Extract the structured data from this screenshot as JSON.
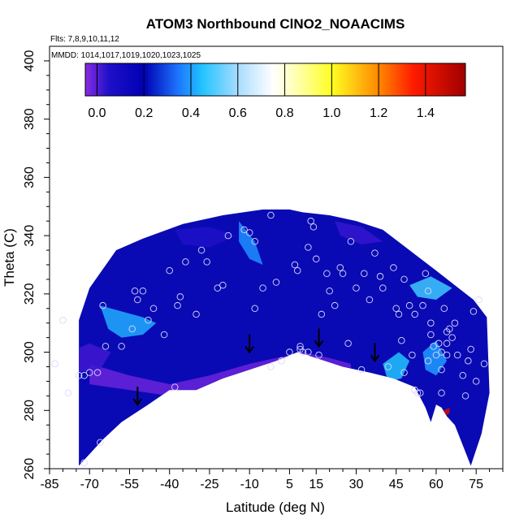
{
  "chart_data": {
    "type": "heatmap",
    "title": "ATOM3 Northbound ClNO2_NOAACIMS",
    "flights_label": "Flts: 7,8,9,10,11,12",
    "dates_label": "MMDD: 1014,1017,1019,1020,1023,1025",
    "xlabel": "Latitude (deg N)",
    "ylabel": "Theta (C)",
    "xlim": [
      -85,
      85
    ],
    "ylim": [
      260,
      405
    ],
    "x_ticks": [
      -85,
      -70,
      -55,
      -40,
      -25,
      -10,
      5,
      15,
      30,
      45,
      60,
      75
    ],
    "y_ticks": [
      260,
      280,
      300,
      320,
      340,
      360,
      380,
      400
    ],
    "colorbar": {
      "range": [
        -0.05,
        1.57
      ],
      "ticks": [
        0.0,
        0.2,
        0.4,
        0.6,
        0.8,
        1.0,
        1.2,
        1.4
      ],
      "tick_labels": [
        "0.0",
        "0.2",
        "0.4",
        "0.6",
        "0.8",
        "1.0",
        "1.2",
        "1.4"
      ],
      "stops": [
        {
          "v": -0.05,
          "c": "#8a2be2"
        },
        {
          "v": 0.05,
          "c": "#1e10c8"
        },
        {
          "v": 0.2,
          "c": "#0000b4"
        },
        {
          "v": 0.35,
          "c": "#1e78ff"
        },
        {
          "v": 0.45,
          "c": "#22c4ff"
        },
        {
          "v": 0.6,
          "c": "#a8dcff"
        },
        {
          "v": 0.75,
          "c": "#ffffff"
        },
        {
          "v": 0.85,
          "c": "#ffffb0"
        },
        {
          "v": 1.0,
          "c": "#ffff22"
        },
        {
          "v": 1.2,
          "c": "#ff8800"
        },
        {
          "v": 1.35,
          "c": "#ff1a00"
        },
        {
          "v": 1.57,
          "c": "#a00000"
        }
      ]
    },
    "colors": {
      "background_field": "#0a0ab4",
      "low_region": "#6a2ad8",
      "high_region": "#28b4ff"
    },
    "coverage_envelope": {
      "upper": [
        [
          -74,
          311
        ],
        [
          -70,
          322
        ],
        [
          -60,
          335
        ],
        [
          -50,
          339
        ],
        [
          -35,
          344
        ],
        [
          -20,
          347
        ],
        [
          -5,
          349
        ],
        [
          5,
          349
        ],
        [
          10,
          348
        ],
        [
          20,
          347
        ],
        [
          30,
          345
        ],
        [
          40,
          342
        ],
        [
          50,
          335
        ],
        [
          60,
          328
        ],
        [
          67,
          323
        ],
        [
          74,
          318
        ],
        [
          79,
          312
        ]
      ],
      "lower": [
        [
          -74,
          261
        ],
        [
          -65,
          270
        ],
        [
          -58,
          276
        ],
        [
          -48,
          282
        ],
        [
          -40,
          287
        ],
        [
          -30,
          287
        ],
        [
          -20,
          291
        ],
        [
          -10,
          294
        ],
        [
          0,
          297
        ],
        [
          8,
          300
        ],
        [
          15,
          298
        ],
        [
          25,
          295
        ],
        [
          35,
          293
        ],
        [
          44,
          291
        ],
        [
          52,
          288
        ],
        [
          56,
          281
        ],
        [
          58,
          276
        ],
        [
          60,
          282
        ],
        [
          62,
          281
        ],
        [
          64,
          278
        ],
        [
          67,
          275
        ],
        [
          70,
          268
        ],
        [
          73,
          261
        ],
        [
          77,
          272
        ],
        [
          80,
          286
        ]
      ]
    },
    "contours": [
      {
        "name": "low-band",
        "value": -0.02,
        "poly": [
          [
            -70,
            296
          ],
          [
            -55,
            292
          ],
          [
            -40,
            289
          ],
          [
            -25,
            292
          ],
          [
            -10,
            296
          ],
          [
            0,
            298
          ],
          [
            10,
            300
          ],
          [
            20,
            298
          ],
          [
            28,
            296
          ],
          [
            28,
            292
          ],
          [
            20,
            296
          ],
          [
            10,
            297
          ],
          [
            0,
            294
          ],
          [
            -10,
            291
          ],
          [
            -25,
            287
          ],
          [
            -40,
            285
          ],
          [
            -55,
            287
          ],
          [
            -70,
            289
          ]
        ]
      },
      {
        "name": "west-high",
        "value": 0.42,
        "poly": [
          [
            -66,
            316
          ],
          [
            -58,
            314
          ],
          [
            -50,
            312
          ],
          [
            -45,
            310
          ],
          [
            -50,
            306
          ],
          [
            -58,
            305
          ],
          [
            -63,
            308
          ]
        ]
      },
      {
        "name": "upper-high",
        "value": 0.38,
        "poly": [
          [
            -14,
            345
          ],
          [
            -8,
            338
          ],
          [
            -5,
            330
          ],
          [
            -10,
            332
          ],
          [
            -14,
            338
          ]
        ]
      },
      {
        "name": "east-high-1",
        "value": 0.45,
        "poly": [
          [
            40,
            296
          ],
          [
            46,
            300
          ],
          [
            50,
            297
          ],
          [
            47,
            291
          ],
          [
            42,
            290
          ]
        ]
      },
      {
        "name": "east-high-2",
        "value": 0.48,
        "poly": [
          [
            50,
            323
          ],
          [
            58,
            326
          ],
          [
            66,
            322
          ],
          [
            60,
            318
          ],
          [
            53,
            319
          ]
        ]
      },
      {
        "name": "east-high-3",
        "value": 0.4,
        "poly": [
          [
            55,
            300
          ],
          [
            60,
            304
          ],
          [
            64,
            297
          ],
          [
            60,
            292
          ],
          [
            56,
            294
          ]
        ]
      },
      {
        "name": "west-low",
        "value": 0.02,
        "poly": [
          [
            -78,
            300
          ],
          [
            -70,
            303
          ],
          [
            -62,
            300
          ],
          [
            -66,
            294
          ],
          [
            -76,
            293
          ]
        ]
      },
      {
        "name": "upper-low",
        "value": 0.05,
        "poly": [
          [
            -38,
            342
          ],
          [
            -25,
            343
          ],
          [
            -15,
            340
          ],
          [
            -25,
            336
          ],
          [
            -35,
            337
          ]
        ]
      },
      {
        "name": "east-low",
        "value": 0.03,
        "poly": [
          [
            22,
            345
          ],
          [
            32,
            343
          ],
          [
            40,
            338
          ],
          [
            32,
            337
          ],
          [
            24,
            340
          ]
        ]
      },
      {
        "name": "red-spot",
        "value": 1.45,
        "poly": [
          [
            63,
            280
          ],
          [
            65,
            281
          ],
          [
            65,
            279
          ],
          [
            63,
            278
          ]
        ]
      }
    ],
    "observations": [
      [
        -83,
        296
      ],
      [
        -80,
        311
      ],
      [
        -78,
        286
      ],
      [
        -74,
        292
      ],
      [
        -72,
        292
      ],
      [
        -72,
        262
      ],
      [
        -70,
        293
      ],
      [
        -67,
        293
      ],
      [
        -66,
        269
      ],
      [
        -65,
        316
      ],
      [
        -64,
        302
      ],
      [
        -58,
        302
      ],
      [
        -54,
        308
      ],
      [
        -53,
        321
      ],
      [
        -52,
        318
      ],
      [
        -50,
        321
      ],
      [
        -48,
        311
      ],
      [
        -46,
        315
      ],
      [
        -42,
        306
      ],
      [
        -40,
        328
      ],
      [
        -38,
        288
      ],
      [
        -37,
        316
      ],
      [
        -36,
        319
      ],
      [
        -34,
        331
      ],
      [
        -30,
        313
      ],
      [
        -28,
        335
      ],
      [
        -26,
        331
      ],
      [
        -22,
        322
      ],
      [
        -20,
        323
      ],
      [
        -18,
        340
      ],
      [
        -12,
        342
      ],
      [
        -10,
        341
      ],
      [
        -8,
        338
      ],
      [
        -8,
        315
      ],
      [
        -5,
        322
      ],
      [
        -2,
        347
      ],
      [
        -2,
        295
      ],
      [
        0,
        324
      ],
      [
        2,
        297
      ],
      [
        5,
        300
      ],
      [
        7,
        330
      ],
      [
        8,
        328
      ],
      [
        9,
        301
      ],
      [
        9,
        302
      ],
      [
        10,
        300
      ],
      [
        12,
        300
      ],
      [
        12,
        336
      ],
      [
        13,
        345
      ],
      [
        14,
        343
      ],
      [
        15,
        332
      ],
      [
        16,
        299
      ],
      [
        17,
        313
      ],
      [
        19,
        327
      ],
      [
        20,
        321
      ],
      [
        22,
        316
      ],
      [
        24,
        329
      ],
      [
        25,
        327
      ],
      [
        27,
        303
      ],
      [
        28,
        338
      ],
      [
        30,
        322
      ],
      [
        32,
        294
      ],
      [
        33,
        327
      ],
      [
        35,
        318
      ],
      [
        37,
        334
      ],
      [
        39,
        326
      ],
      [
        40,
        322
      ],
      [
        42,
        295
      ],
      [
        44,
        329
      ],
      [
        45,
        315
      ],
      [
        46,
        313
      ],
      [
        47,
        304
      ],
      [
        48,
        325
      ],
      [
        48,
        293
      ],
      [
        50,
        316
      ],
      [
        51,
        299
      ],
      [
        52,
        313
      ],
      [
        52,
        287
      ],
      [
        53,
        286
      ],
      [
        54,
        286
      ],
      [
        55,
        316
      ],
      [
        56,
        327
      ],
      [
        57,
        321
      ],
      [
        57,
        297
      ],
      [
        58,
        310
      ],
      [
        58,
        306
      ],
      [
        59,
        302
      ],
      [
        60,
        299
      ],
      [
        61,
        303
      ],
      [
        62,
        300
      ],
      [
        62,
        294
      ],
      [
        62,
        286
      ],
      [
        63,
        315
      ],
      [
        64,
        307
      ],
      [
        64,
        303
      ],
      [
        64,
        299
      ],
      [
        65,
        308
      ],
      [
        66,
        305
      ],
      [
        67,
        310
      ],
      [
        68,
        299
      ],
      [
        70,
        292
      ],
      [
        71,
        285
      ],
      [
        72,
        297
      ],
      [
        73,
        301
      ],
      [
        74,
        314
      ],
      [
        75,
        290
      ],
      [
        76,
        318
      ],
      [
        78,
        296
      ]
    ],
    "arrows": [
      [
        -52,
        282
      ],
      [
        -10,
        300
      ],
      [
        16,
        302
      ],
      [
        37,
        297
      ]
    ]
  }
}
